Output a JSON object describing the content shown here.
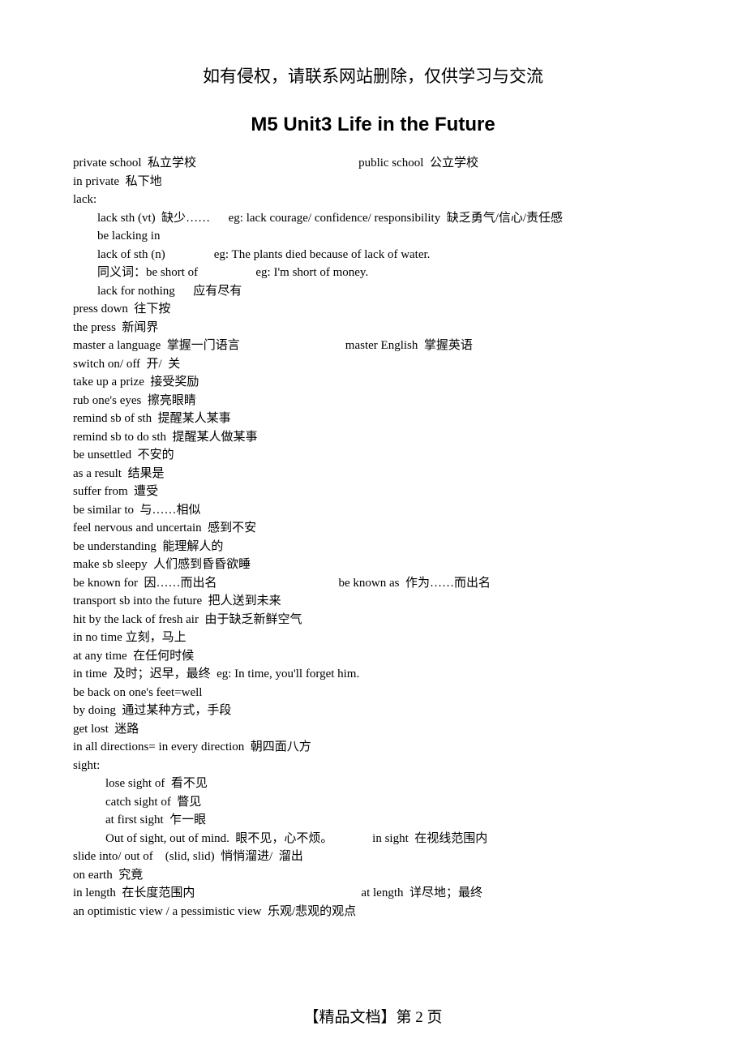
{
  "notice": "如有侵权，请联系网站删除，仅供学习与交流",
  "title": "M5    Unit3 Life in the Future",
  "lines": [
    {
      "left": "private school  私立学校",
      "right": "public school  公立学校",
      "gap": 200
    },
    {
      "left": "in private  私下地"
    },
    {
      "left": "lack:"
    },
    {
      "left": "lack sth (vt)  缺少……      eg: lack courage/ confidence/ responsibility  缺乏勇气/信心/责任感",
      "indent": 1
    },
    {
      "left": "be lacking in",
      "indent": 1
    },
    {
      "left": "lack of sth (n)                eg: The plants died because of lack of water.",
      "indent": 1
    },
    {
      "left": "同义词：be short of                   eg: I'm short of money.",
      "indent": 1
    },
    {
      "left": "lack for nothing      应有尽有",
      "indent": 1
    },
    {
      "left": "press down  往下按"
    },
    {
      "left": "the press  新闻界"
    },
    {
      "left": "master a language  掌握一门语言",
      "right": "master English  掌握英语",
      "gap": 130
    },
    {
      "left": "switch on/ off  开/  关"
    },
    {
      "left": "take up a prize  接受奖励"
    },
    {
      "left": "rub one's eyes  擦亮眼睛"
    },
    {
      "left": "remind sb of sth  提醒某人某事"
    },
    {
      "left": "remind sb to do sth  提醒某人做某事"
    },
    {
      "left": "be unsettled  不安的"
    },
    {
      "left": "as a result  结果是"
    },
    {
      "left": "suffer from  遭受"
    },
    {
      "left": "be similar to  与……相似"
    },
    {
      "left": "feel nervous and uncertain  感到不安"
    },
    {
      "left": "be understanding  能理解人的"
    },
    {
      "left": "make sb sleepy  人们感到昏昏欲睡"
    },
    {
      "left": "be known for  因……而出名",
      "right": "be known as  作为……而出名",
      "gap": 150
    },
    {
      "left": "transport sb into the future  把人送到未来"
    },
    {
      "left": "hit by the lack of fresh air  由于缺乏新鲜空气"
    },
    {
      "left": "in no time 立刻，马上"
    },
    {
      "left": "at any time  在任何时候"
    },
    {
      "left": "in time  及时；迟早，最终  eg: In time, you'll forget him."
    },
    {
      "left": "be back on one's feet=well"
    },
    {
      "left": "by doing  通过某种方式，手段"
    },
    {
      "left": "get lost  迷路"
    },
    {
      "left": "in all directions= in every direction  朝四面八方"
    },
    {
      "left": "sight:"
    },
    {
      "left": "lose sight of  看不见",
      "indent": 2
    },
    {
      "left": "catch sight of  瞥见",
      "indent": 2
    },
    {
      "left": "at first sight  乍一眼",
      "indent": 2
    },
    {
      "left": "Out of sight, out of mind.  眼不见，心不烦。             in sight  在视线范围内",
      "indent": 2
    },
    {
      "left": "slide into/ out of    (slid, slid)  悄悄溜进/  溜出"
    },
    {
      "left": "on earth  究竟"
    },
    {
      "left": "in length  在长度范围内",
      "right": "at length  详尽地；最终",
      "gap": 205
    },
    {
      "left": "an optimistic view / a pessimistic view  乐观/悲观的观点"
    }
  ],
  "footer": "【精品文档】第  2  页"
}
